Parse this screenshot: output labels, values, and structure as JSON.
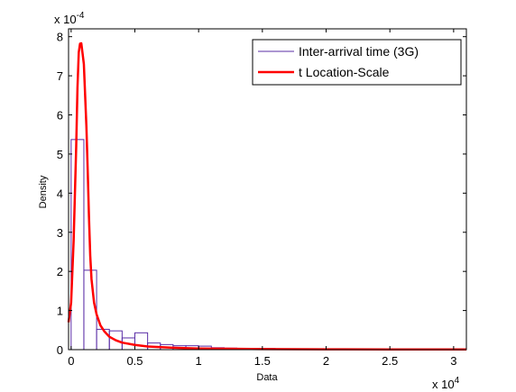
{
  "chart_data": {
    "type": "histogram",
    "xlabel": "Data",
    "ylabel": "Density",
    "x_multiplier_label": "x 10",
    "x_multiplier_exponent": "4",
    "y_multiplier_label": "x 10",
    "y_multiplier_exponent": "-4",
    "xlim": [
      -0.02,
      3.1
    ],
    "ylim": [
      0,
      8.2
    ],
    "x_ticks": [
      {
        "value": 0,
        "label": "0"
      },
      {
        "value": 0.5,
        "label": "0.5"
      },
      {
        "value": 1,
        "label": "1"
      },
      {
        "value": 1.5,
        "label": "1.5"
      },
      {
        "value": 2,
        "label": "2"
      },
      {
        "value": 2.5,
        "label": "2.5"
      },
      {
        "value": 3,
        "label": "3"
      }
    ],
    "y_ticks": [
      {
        "value": 0,
        "label": "0"
      },
      {
        "value": 1,
        "label": "1"
      },
      {
        "value": 2,
        "label": "2"
      },
      {
        "value": 3,
        "label": "3"
      },
      {
        "value": 4,
        "label": "4"
      },
      {
        "value": 5,
        "label": "5"
      },
      {
        "value": 6,
        "label": "6"
      },
      {
        "value": 7,
        "label": "7"
      },
      {
        "value": 8,
        "label": "8"
      }
    ],
    "grid": false,
    "legend_position": "top-right",
    "series": [
      {
        "name": "Inter-arrival time (3G)",
        "kind": "histogram",
        "color": "#5a2ea6",
        "bin_width": 0.1,
        "bins": [
          {
            "start": 0.0,
            "value": 5.37
          },
          {
            "start": 0.1,
            "value": 2.03
          },
          {
            "start": 0.2,
            "value": 0.52
          },
          {
            "start": 0.3,
            "value": 0.48
          },
          {
            "start": 0.4,
            "value": 0.3
          },
          {
            "start": 0.5,
            "value": 0.43
          },
          {
            "start": 0.6,
            "value": 0.17
          },
          {
            "start": 0.7,
            "value": 0.13
          },
          {
            "start": 0.8,
            "value": 0.1
          },
          {
            "start": 0.9,
            "value": 0.1
          },
          {
            "start": 1.0,
            "value": 0.09
          },
          {
            "start": 1.1,
            "value": 0.05
          },
          {
            "start": 1.2,
            "value": 0.04
          },
          {
            "start": 1.3,
            "value": 0.03
          },
          {
            "start": 1.4,
            "value": 0.03
          },
          {
            "start": 1.5,
            "value": 0.03
          },
          {
            "start": 1.6,
            "value": 0.02
          },
          {
            "start": 1.7,
            "value": 0.02
          },
          {
            "start": 1.8,
            "value": 0.02
          },
          {
            "start": 1.9,
            "value": 0.02
          },
          {
            "start": 2.0,
            "value": 0.02
          },
          {
            "start": 2.1,
            "value": 0.02
          },
          {
            "start": 2.2,
            "value": 0.02
          },
          {
            "start": 2.3,
            "value": 0.02
          },
          {
            "start": 2.4,
            "value": 0.02
          },
          {
            "start": 2.5,
            "value": 0.02
          },
          {
            "start": 2.6,
            "value": 0.02
          },
          {
            "start": 2.7,
            "value": 0.02
          },
          {
            "start": 2.8,
            "value": 0.02
          },
          {
            "start": 2.9,
            "value": 0.02
          },
          {
            "start": 3.0,
            "value": 0.02
          }
        ]
      },
      {
        "name": "t Location-Scale",
        "kind": "line",
        "color": "#ff0000",
        "x": [
          -0.02,
          0.0,
          0.02,
          0.04,
          0.05,
          0.06,
          0.07,
          0.08,
          0.1,
          0.12,
          0.13,
          0.14,
          0.15,
          0.16,
          0.18,
          0.2,
          0.23,
          0.26,
          0.3,
          0.35,
          0.4,
          0.5,
          0.6,
          0.8,
          1.0,
          1.5,
          2.0,
          2.5,
          3.1
        ],
        "y": [
          0.7,
          1.2,
          2.8,
          5.2,
          6.7,
          7.6,
          7.82,
          7.83,
          7.3,
          5.7,
          4.6,
          3.4,
          2.4,
          1.8,
          1.2,
          0.9,
          0.62,
          0.47,
          0.33,
          0.24,
          0.18,
          0.12,
          0.08,
          0.05,
          0.03,
          0.015,
          0.01,
          0.007,
          0.005
        ]
      }
    ]
  }
}
